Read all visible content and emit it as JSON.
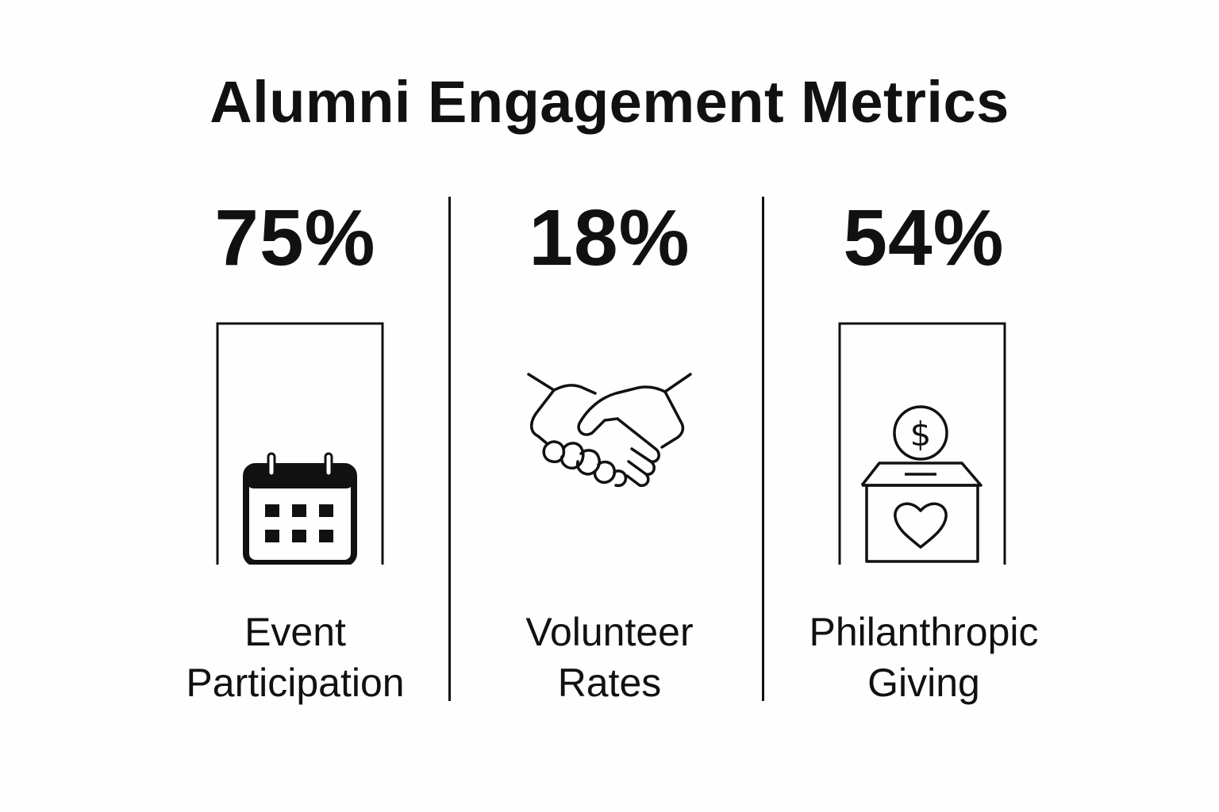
{
  "title": "Alumni Engagement Metrics",
  "metrics": [
    {
      "value": "75%",
      "label_line1": "Event",
      "label_line2": "Participation",
      "icon": "calendar-icon"
    },
    {
      "value": "18%",
      "label_line1": "Volunteer",
      "label_line2": "Rates",
      "icon": "handshake-icon"
    },
    {
      "value": "54%",
      "label_line1": "Philanthropic",
      "label_line2": "Giving",
      "icon": "donation-box-icon"
    }
  ],
  "colors": {
    "ink": "#111111",
    "background": "#fefefe"
  }
}
